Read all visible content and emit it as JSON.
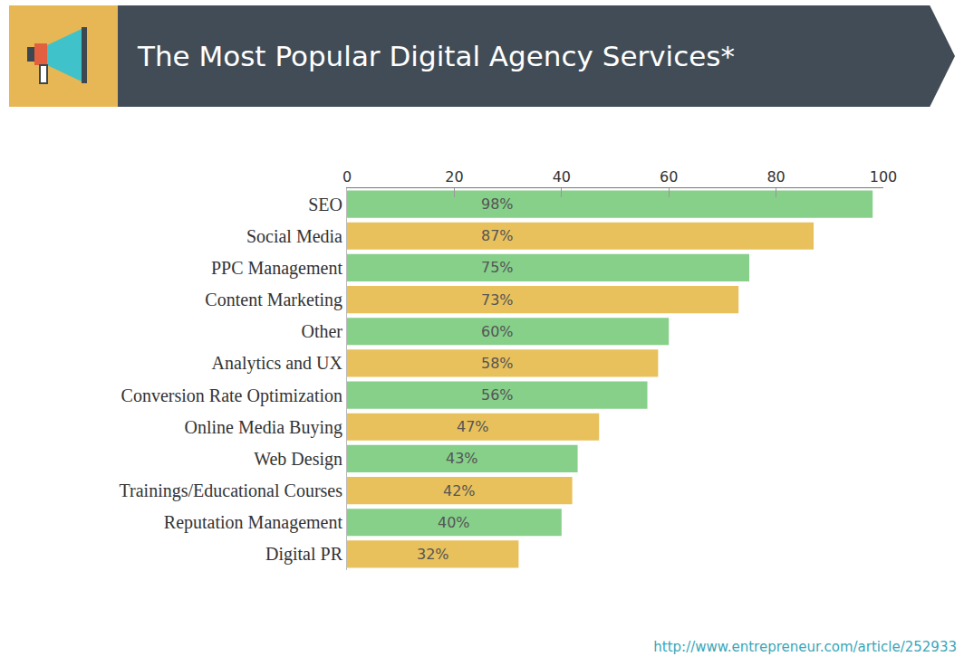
{
  "chart_data": {
    "type": "bar",
    "orientation": "horizontal",
    "title": "The Most Popular Digital Agency Services*",
    "categories": [
      "SEO",
      "Social Media",
      "PPC Management",
      "Content Marketing",
      "Other",
      "Analytics and UX",
      "Conversion Rate Optimization",
      "Online Media Buying",
      "Web Design",
      "Trainings/Educational Courses",
      "Reputation Management",
      "Digital PR"
    ],
    "values": [
      98,
      87,
      75,
      73,
      60,
      58,
      56,
      47,
      43,
      42,
      40,
      32
    ],
    "value_labels": [
      "98%",
      "87%",
      "75%",
      "73%",
      "60%",
      "58%",
      "56%",
      "47%",
      "43%",
      "42%",
      "40%",
      "32%"
    ],
    "colors": [
      "#86d08a",
      "#e9c15c",
      "#86d08a",
      "#e9c15c",
      "#86d08a",
      "#e9c15c",
      "#86d08a",
      "#e9c15c",
      "#86d08a",
      "#e9c15c",
      "#86d08a",
      "#e9c15c"
    ],
    "xlim": [
      0,
      100
    ],
    "xticks": [
      0,
      20,
      40,
      60,
      80,
      100
    ],
    "grid": false,
    "data_labels": true,
    "annotations": [
      "http://www.entrepreneur.com/article/252933"
    ]
  }
}
